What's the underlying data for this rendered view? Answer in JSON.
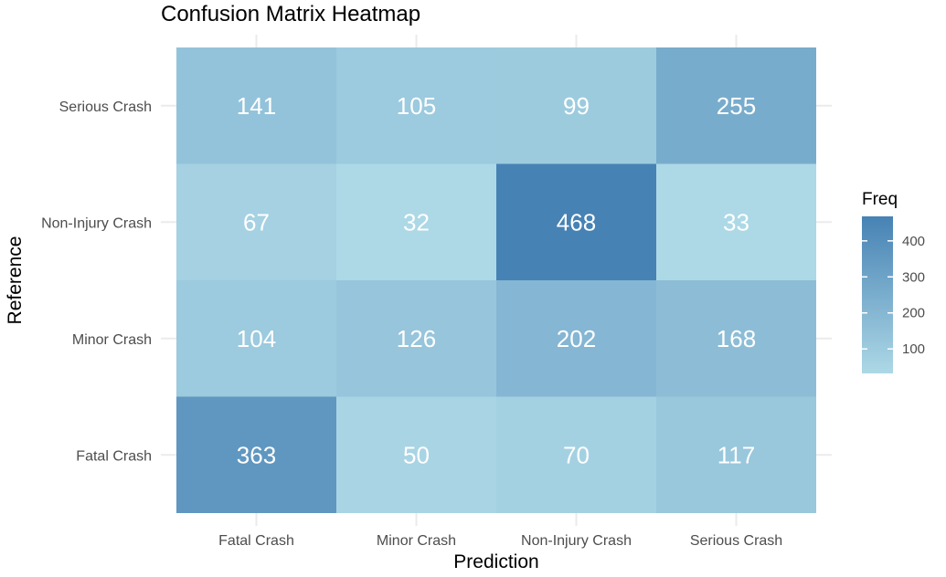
{
  "chart_data": {
    "type": "heatmap",
    "title": "Confusion Matrix Heatmap",
    "xlabel": "Prediction",
    "ylabel": "Reference",
    "x_categories": [
      "Fatal Crash",
      "Minor Crash",
      "Non-Injury Crash",
      "Serious Crash"
    ],
    "y_categories": [
      "Fatal Crash",
      "Minor Crash",
      "Non-Injury Crash",
      "Serious Crash"
    ],
    "cells": [
      {
        "reference": "Serious Crash",
        "prediction": "Fatal Crash",
        "value": 141
      },
      {
        "reference": "Serious Crash",
        "prediction": "Minor Crash",
        "value": 105
      },
      {
        "reference": "Serious Crash",
        "prediction": "Non-Injury Crash",
        "value": 99
      },
      {
        "reference": "Serious Crash",
        "prediction": "Serious Crash",
        "value": 255
      },
      {
        "reference": "Non-Injury Crash",
        "prediction": "Fatal Crash",
        "value": 67
      },
      {
        "reference": "Non-Injury Crash",
        "prediction": "Minor Crash",
        "value": 32
      },
      {
        "reference": "Non-Injury Crash",
        "prediction": "Non-Injury Crash",
        "value": 468
      },
      {
        "reference": "Non-Injury Crash",
        "prediction": "Serious Crash",
        "value": 33
      },
      {
        "reference": "Minor Crash",
        "prediction": "Fatal Crash",
        "value": 104
      },
      {
        "reference": "Minor Crash",
        "prediction": "Minor Crash",
        "value": 126
      },
      {
        "reference": "Minor Crash",
        "prediction": "Non-Injury Crash",
        "value": 202
      },
      {
        "reference": "Minor Crash",
        "prediction": "Serious Crash",
        "value": 168
      },
      {
        "reference": "Fatal Crash",
        "prediction": "Fatal Crash",
        "value": 363
      },
      {
        "reference": "Fatal Crash",
        "prediction": "Minor Crash",
        "value": 50
      },
      {
        "reference": "Fatal Crash",
        "prediction": "Non-Injury Crash",
        "value": 70
      },
      {
        "reference": "Fatal Crash",
        "prediction": "Serious Crash",
        "value": 117
      }
    ],
    "legend": {
      "title": "Freq",
      "ticks": [
        100,
        200,
        300,
        400
      ],
      "range": [
        32,
        468
      ],
      "low_color": "#add8e6",
      "high_color": "#4682b4",
      "placement": "right"
    },
    "grid": true
  }
}
